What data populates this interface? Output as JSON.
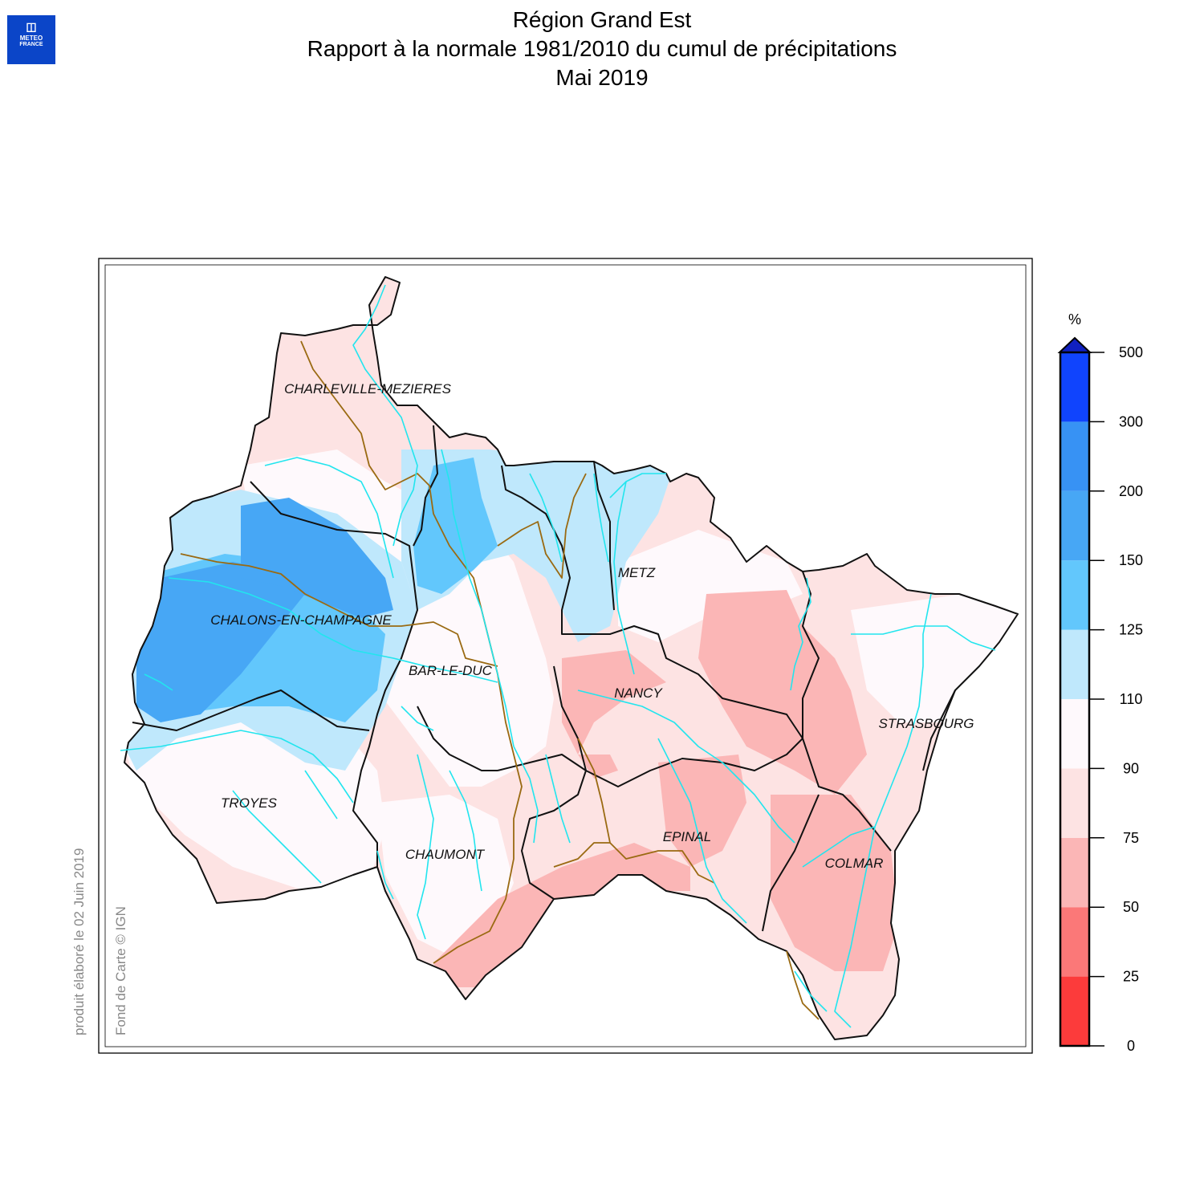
{
  "logo": {
    "line1": "METEO",
    "line2": "FRANCE"
  },
  "title": {
    "line1": "Région Grand Est",
    "line2": "Rapport à la normale 1981/2010 du cumul de précipitations",
    "line3": "Mai 2019"
  },
  "footer": {
    "produced": "produit élaboré le 02 Juin 2019",
    "copyright": "Fond de Carte © IGN"
  },
  "cities": [
    {
      "id": "charleville",
      "name": "CHARLEVILLE-MEZIERES"
    },
    {
      "id": "metz",
      "name": "METZ"
    },
    {
      "id": "chalons",
      "name": "CHALONS-EN-CHAMPAGNE"
    },
    {
      "id": "barleduc",
      "name": "BAR-LE-DUC"
    },
    {
      "id": "nancy",
      "name": "NANCY"
    },
    {
      "id": "strasbourg",
      "name": "STRASBOURG"
    },
    {
      "id": "troyes",
      "name": "TROYES"
    },
    {
      "id": "epinal",
      "name": "EPINAL"
    },
    {
      "id": "chaumont",
      "name": "CHAUMONT"
    },
    {
      "id": "colmar",
      "name": "COLMAR"
    }
  ],
  "legend": {
    "unit": "%",
    "ticks": [
      "0",
      "25",
      "50",
      "75",
      "90",
      "110",
      "125",
      "150",
      "200",
      "300",
      "500"
    ],
    "colors": [
      "#fc3b3b",
      "#fb7878",
      "#fbb6b6",
      "#fde3e3",
      "#fef9fc",
      "#bfe8fc",
      "#62c7fc",
      "#47a7f5",
      "#3792f4",
      "#1044fd"
    ],
    "overflow_color": "#1020c0"
  },
  "colors": {
    "river": "#22e5ee",
    "dept_border": "#111111",
    "basin_border": "#9a6a12"
  }
}
